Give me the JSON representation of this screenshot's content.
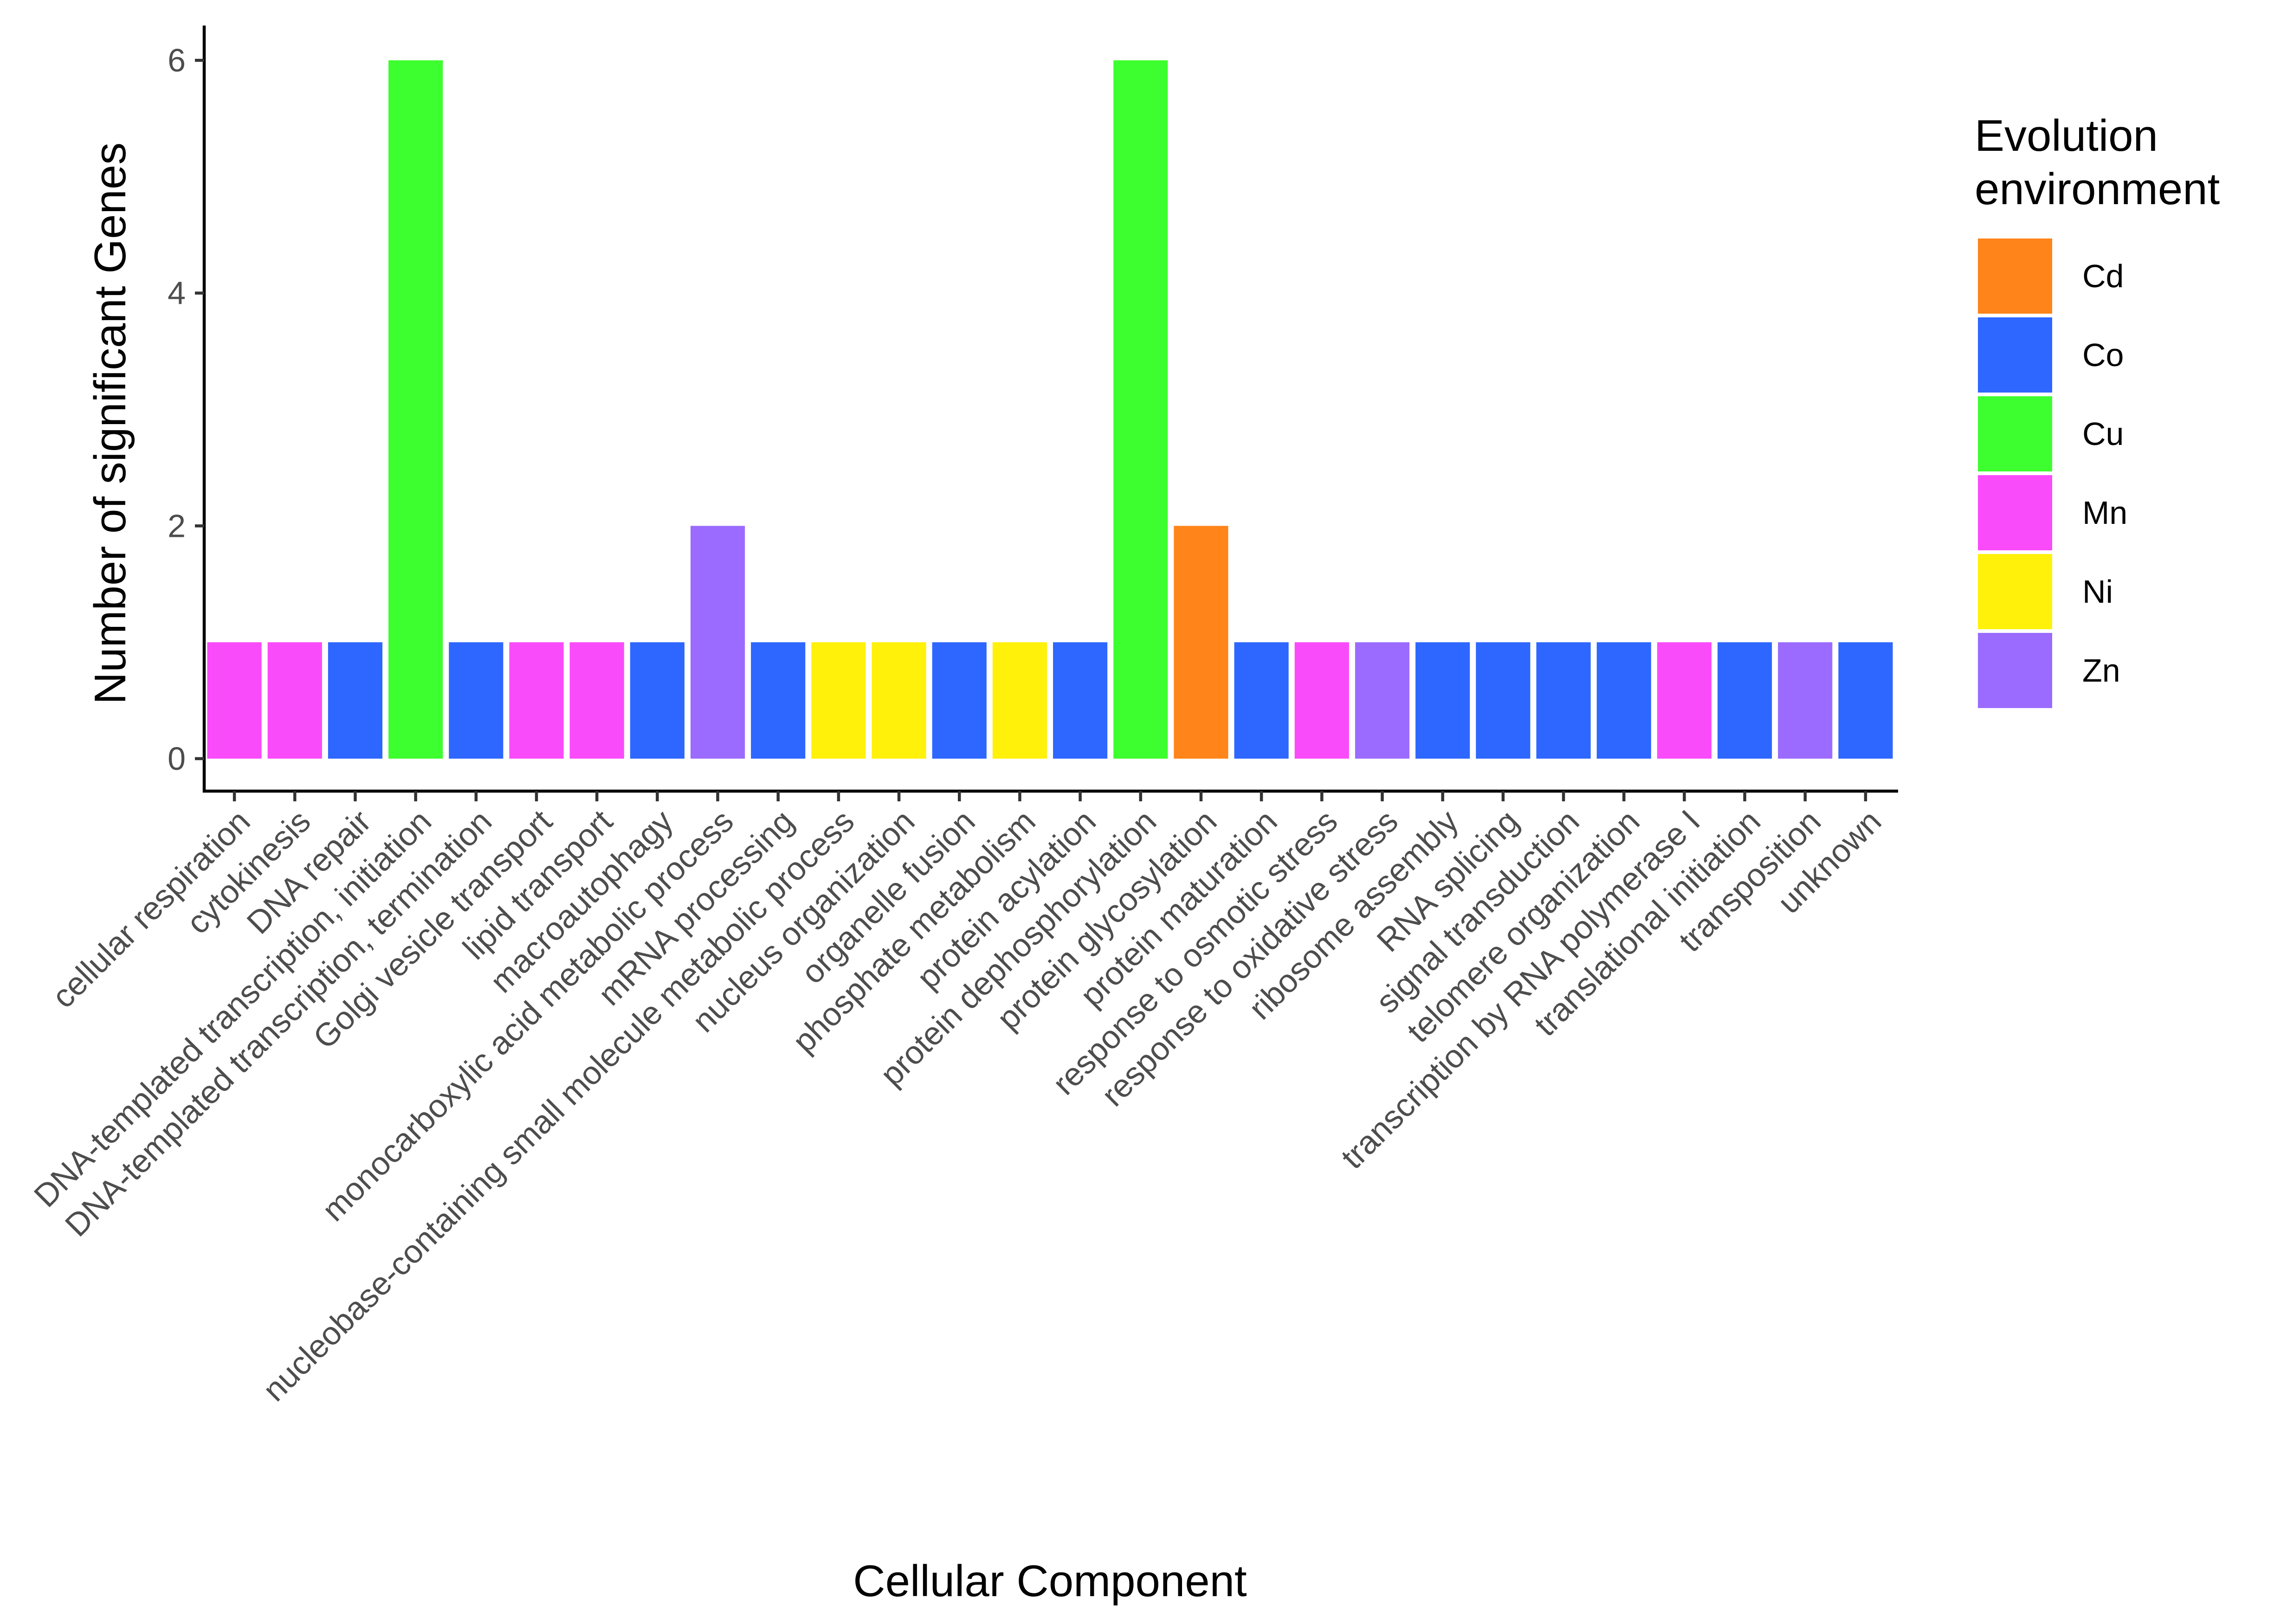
{
  "chart_data": {
    "type": "bar",
    "xlabel": "Cellular Component",
    "ylabel": "Number of significant Genes",
    "ylim": [
      0,
      6.3
    ],
    "yticks": [
      0,
      2,
      4,
      6
    ],
    "grid": false,
    "legend": {
      "title_lines": [
        "Evolution",
        "environment"
      ],
      "position": "right",
      "entries": [
        {
          "name": "Cd",
          "color": "#FF8419"
        },
        {
          "name": "Co",
          "color": "#2E67FF"
        },
        {
          "name": "Cu",
          "color": "#3DFE2E"
        },
        {
          "name": "Mn",
          "color": "#FA4BFA"
        },
        {
          "name": "Ni",
          "color": "#FFF10A"
        },
        {
          "name": "Zn",
          "color": "#9B6BFF"
        }
      ]
    },
    "bars": [
      {
        "category": "cellular respiration",
        "value": 1,
        "group": "Mn"
      },
      {
        "category": "cytokinesis",
        "value": 1,
        "group": "Mn"
      },
      {
        "category": "DNA repair",
        "value": 1,
        "group": "Co"
      },
      {
        "category": "DNA-templated transcription, initiation",
        "value": 6,
        "group": "Cu"
      },
      {
        "category": "DNA-templated transcription, termination",
        "value": 1,
        "group": "Co"
      },
      {
        "category": "Golgi vesicle transport",
        "value": 1,
        "group": "Mn"
      },
      {
        "category": "lipid transport",
        "value": 1,
        "group": "Mn"
      },
      {
        "category": "macroautophagy",
        "value": 1,
        "group": "Co"
      },
      {
        "category": "monocarboxylic acid metabolic process",
        "value": 2,
        "group": "Zn"
      },
      {
        "category": "mRNA processing",
        "value": 1,
        "group": "Co"
      },
      {
        "category": "nucleobase-containing small molecule metabolic process",
        "value": 1,
        "group": "Ni"
      },
      {
        "category": "nucleus organization",
        "value": 1,
        "group": "Ni"
      },
      {
        "category": "organelle fusion",
        "value": 1,
        "group": "Co"
      },
      {
        "category": "phosphate metabolism",
        "value": 1,
        "group": "Ni"
      },
      {
        "category": "protein acylation",
        "value": 1,
        "group": "Co"
      },
      {
        "category": "protein dephosphorylation",
        "value": 6,
        "group": "Cu"
      },
      {
        "category": "protein glycosylation",
        "value": 2,
        "group": "Cd"
      },
      {
        "category": "protein maturation",
        "value": 1,
        "group": "Co"
      },
      {
        "category": "response to osmotic stress",
        "value": 1,
        "group": "Mn"
      },
      {
        "category": "response to oxidative stress",
        "value": 1,
        "group": "Zn"
      },
      {
        "category": "ribosome assembly",
        "value": 1,
        "group": "Co"
      },
      {
        "category": "RNA splicing",
        "value": 1,
        "group": "Co"
      },
      {
        "category": "signal transduction",
        "value": 1,
        "group": "Co"
      },
      {
        "category": "telomere organization",
        "value": 1,
        "group": "Co"
      },
      {
        "category": "transcription by RNA polymerase I",
        "value": 1,
        "group": "Mn"
      },
      {
        "category": "translational initiation",
        "value": 1,
        "group": "Co"
      },
      {
        "category": "transposition",
        "value": 1,
        "group": "Zn"
      },
      {
        "category": "unknown",
        "value": 1,
        "group": "Co"
      }
    ]
  }
}
